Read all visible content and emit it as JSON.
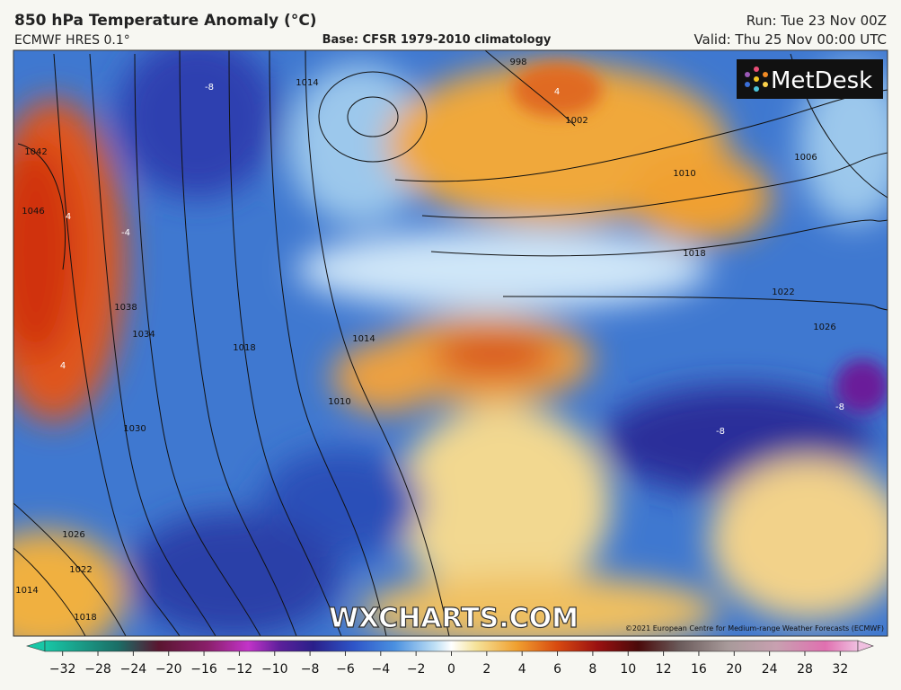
{
  "header": {
    "title": "850 hPa Temperature Anomaly (°C)",
    "model": "ECMWF HRES 0.1°",
    "base": "Base: CFSR 1979-2010 climatology",
    "run": "Run: Tue 23 Nov 00Z",
    "valid": "Valid: Thu 25 Nov 00:00 UTC"
  },
  "logo": "MetDesk",
  "watermark": "WXCHARTS.COM",
  "copyright": "©2021 European Centre for Medium-range Weather Forecasts (ECMWF)",
  "map": {
    "isobar_labels": [
      "1042",
      "1046",
      "1038",
      "1034",
      "1030",
      "1026",
      "1022",
      "1018",
      "1014",
      "1018",
      "1014",
      "1010",
      "1014",
      "998",
      "1002",
      "1010",
      "1006",
      "1018",
      "1022",
      "1026"
    ],
    "anomaly_labels": [
      "-8",
      "4",
      "-4",
      "4",
      "-8",
      "-8",
      "4"
    ]
  },
  "colorbar": {
    "labels": [
      "−32",
      "−28",
      "−24",
      "−20",
      "−16",
      "−12",
      "−10",
      "−8",
      "−6",
      "−4",
      "−2",
      "0",
      "2",
      "4",
      "6",
      "8",
      "10",
      "12",
      "16",
      "20",
      "24",
      "28",
      "32"
    ]
  }
}
